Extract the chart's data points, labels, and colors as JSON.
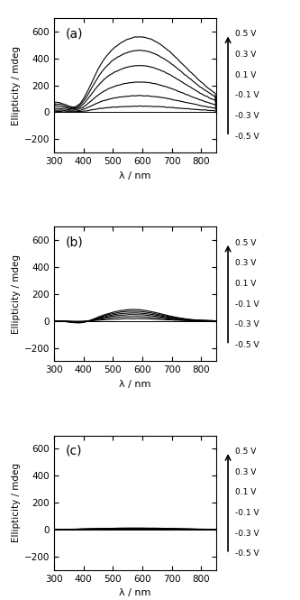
{
  "xlim": [
    300,
    850
  ],
  "ylim": [
    -300,
    700
  ],
  "yticks": [
    -200,
    0,
    200,
    400,
    600
  ],
  "xticks": [
    300,
    400,
    500,
    600,
    700,
    800
  ],
  "xlabel": "λ / nm",
  "ylabel": "Ellipticity / mdeg",
  "voltages": [
    "0.5 V",
    "0.3 V",
    "0.1 V",
    "-0.1 V",
    "-0.3 V",
    "-0.5 V"
  ],
  "panels": [
    "(a)",
    "(b)",
    "(c)"
  ],
  "bg_color": "#ffffff",
  "line_color": "#000000",
  "line_width": 0.8,
  "figsize": [
    3.33,
    6.65
  ],
  "dpi": 100,
  "panel_a_scales": [
    1.0,
    0.82,
    0.62,
    0.4,
    0.22,
    0.08
  ],
  "panel_b_scales": [
    1.0,
    0.85,
    0.7,
    0.55,
    0.38,
    0.2
  ],
  "panel_c_scales": [
    1.0,
    0.85,
    0.7,
    0.55,
    0.38,
    0.2
  ]
}
